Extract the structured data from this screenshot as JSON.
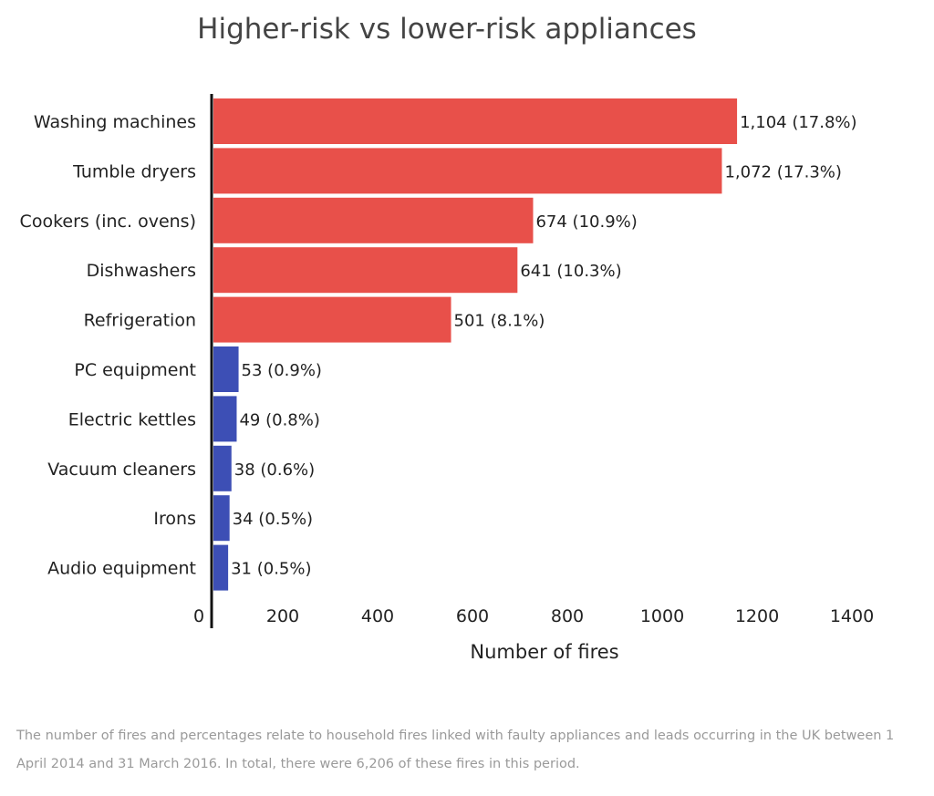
{
  "chart_data": {
    "type": "bar",
    "orientation": "horizontal",
    "title": "Higher-risk vs lower-risk appliances",
    "xlabel": "Number of fires",
    "ylabel": "",
    "xlim": [
      0,
      1400
    ],
    "xticks": [
      0,
      200,
      400,
      600,
      800,
      1000,
      1200,
      1400
    ],
    "grid": false,
    "categories": [
      "Washing machines",
      "Tumble dryers",
      "Cookers (inc. ovens)",
      "Dishwashers",
      "Refrigeration",
      "PC equipment",
      "Electric kettles",
      "Vacuum cleaners",
      "Irons",
      "Audio equipment"
    ],
    "values": [
      1104,
      1072,
      674,
      641,
      501,
      53,
      49,
      38,
      34,
      31
    ],
    "data_labels": [
      "1,104 (17.8%)",
      "1,072 (17.3%)",
      "674 (10.9%)",
      "641 (10.3%)",
      "501 (8.1%)",
      "53 (0.9%)",
      "49 (0.8%)",
      "38 (0.6%)",
      "34 (0.5%)",
      "31 (0.5%)"
    ],
    "groups": [
      "higher-risk",
      "higher-risk",
      "higher-risk",
      "higher-risk",
      "higher-risk",
      "lower-risk",
      "lower-risk",
      "lower-risk",
      "lower-risk",
      "lower-risk"
    ],
    "colors": {
      "higher-risk": "#e8504a",
      "lower-risk": "#3d4fb5"
    }
  },
  "footnote": "The number of fires and percentages relate to household fires linked with faulty appliances and leads occurring in the UK between 1 April 2014 and 31 March 2016. In total, there were 6,206 of these fires in this period."
}
